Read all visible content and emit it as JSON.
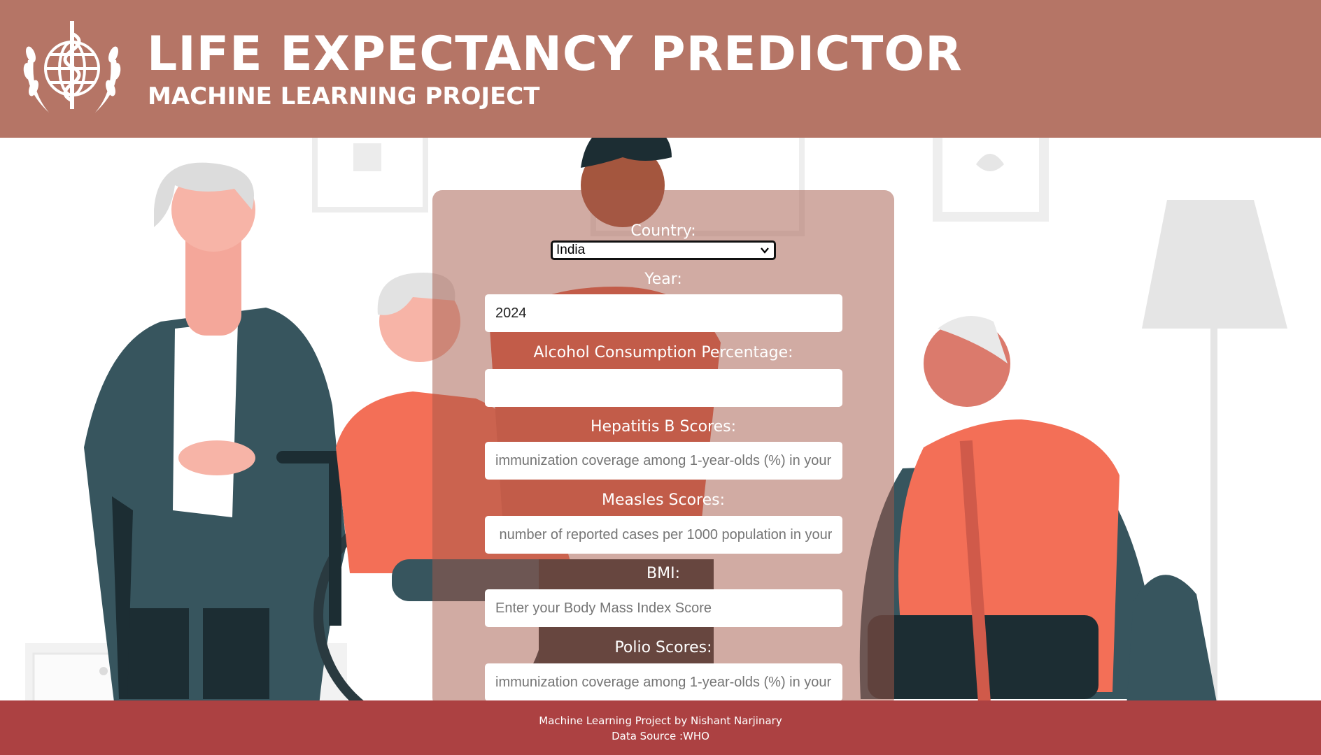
{
  "header": {
    "title": "LIFE EXPECTANCY PREDICTOR",
    "subtitle": "MACHINE LEARNING PROJECT",
    "logo_icon": "who-emblem-icon"
  },
  "form": {
    "country": {
      "label": "Country:",
      "value": "India"
    },
    "year": {
      "label": "Year:",
      "value": "2024",
      "placeholder": ""
    },
    "alcohol": {
      "label": "Alcohol Consumption Percentage:",
      "value": "",
      "placeholder": ""
    },
    "hepatitis_b": {
      "label": "Hepatitis B Scores:",
      "placeholder": "immunization coverage among 1-year-olds (%) in your"
    },
    "measles": {
      "label": "Measles Scores:",
      "placeholder": " number of reported cases per 1000 population in your"
    },
    "bmi": {
      "label": "BMI:",
      "placeholder": "Enter your Body Mass Index Score"
    },
    "polio": {
      "label": "Polio Scores:",
      "placeholder": "immunization coverage among 1-year-olds (%) in your"
    }
  },
  "footer": {
    "line1": "Machine Learning Project by Nishant Narjinary",
    "line2": "Data Source :WHO"
  },
  "colors": {
    "header_bg": "#b57566",
    "footer_bg": "#ac4142",
    "panel_bg": "rgba(163,88,72,0.50)",
    "accent_orange": "#f36f57",
    "teal": "#37555e"
  }
}
